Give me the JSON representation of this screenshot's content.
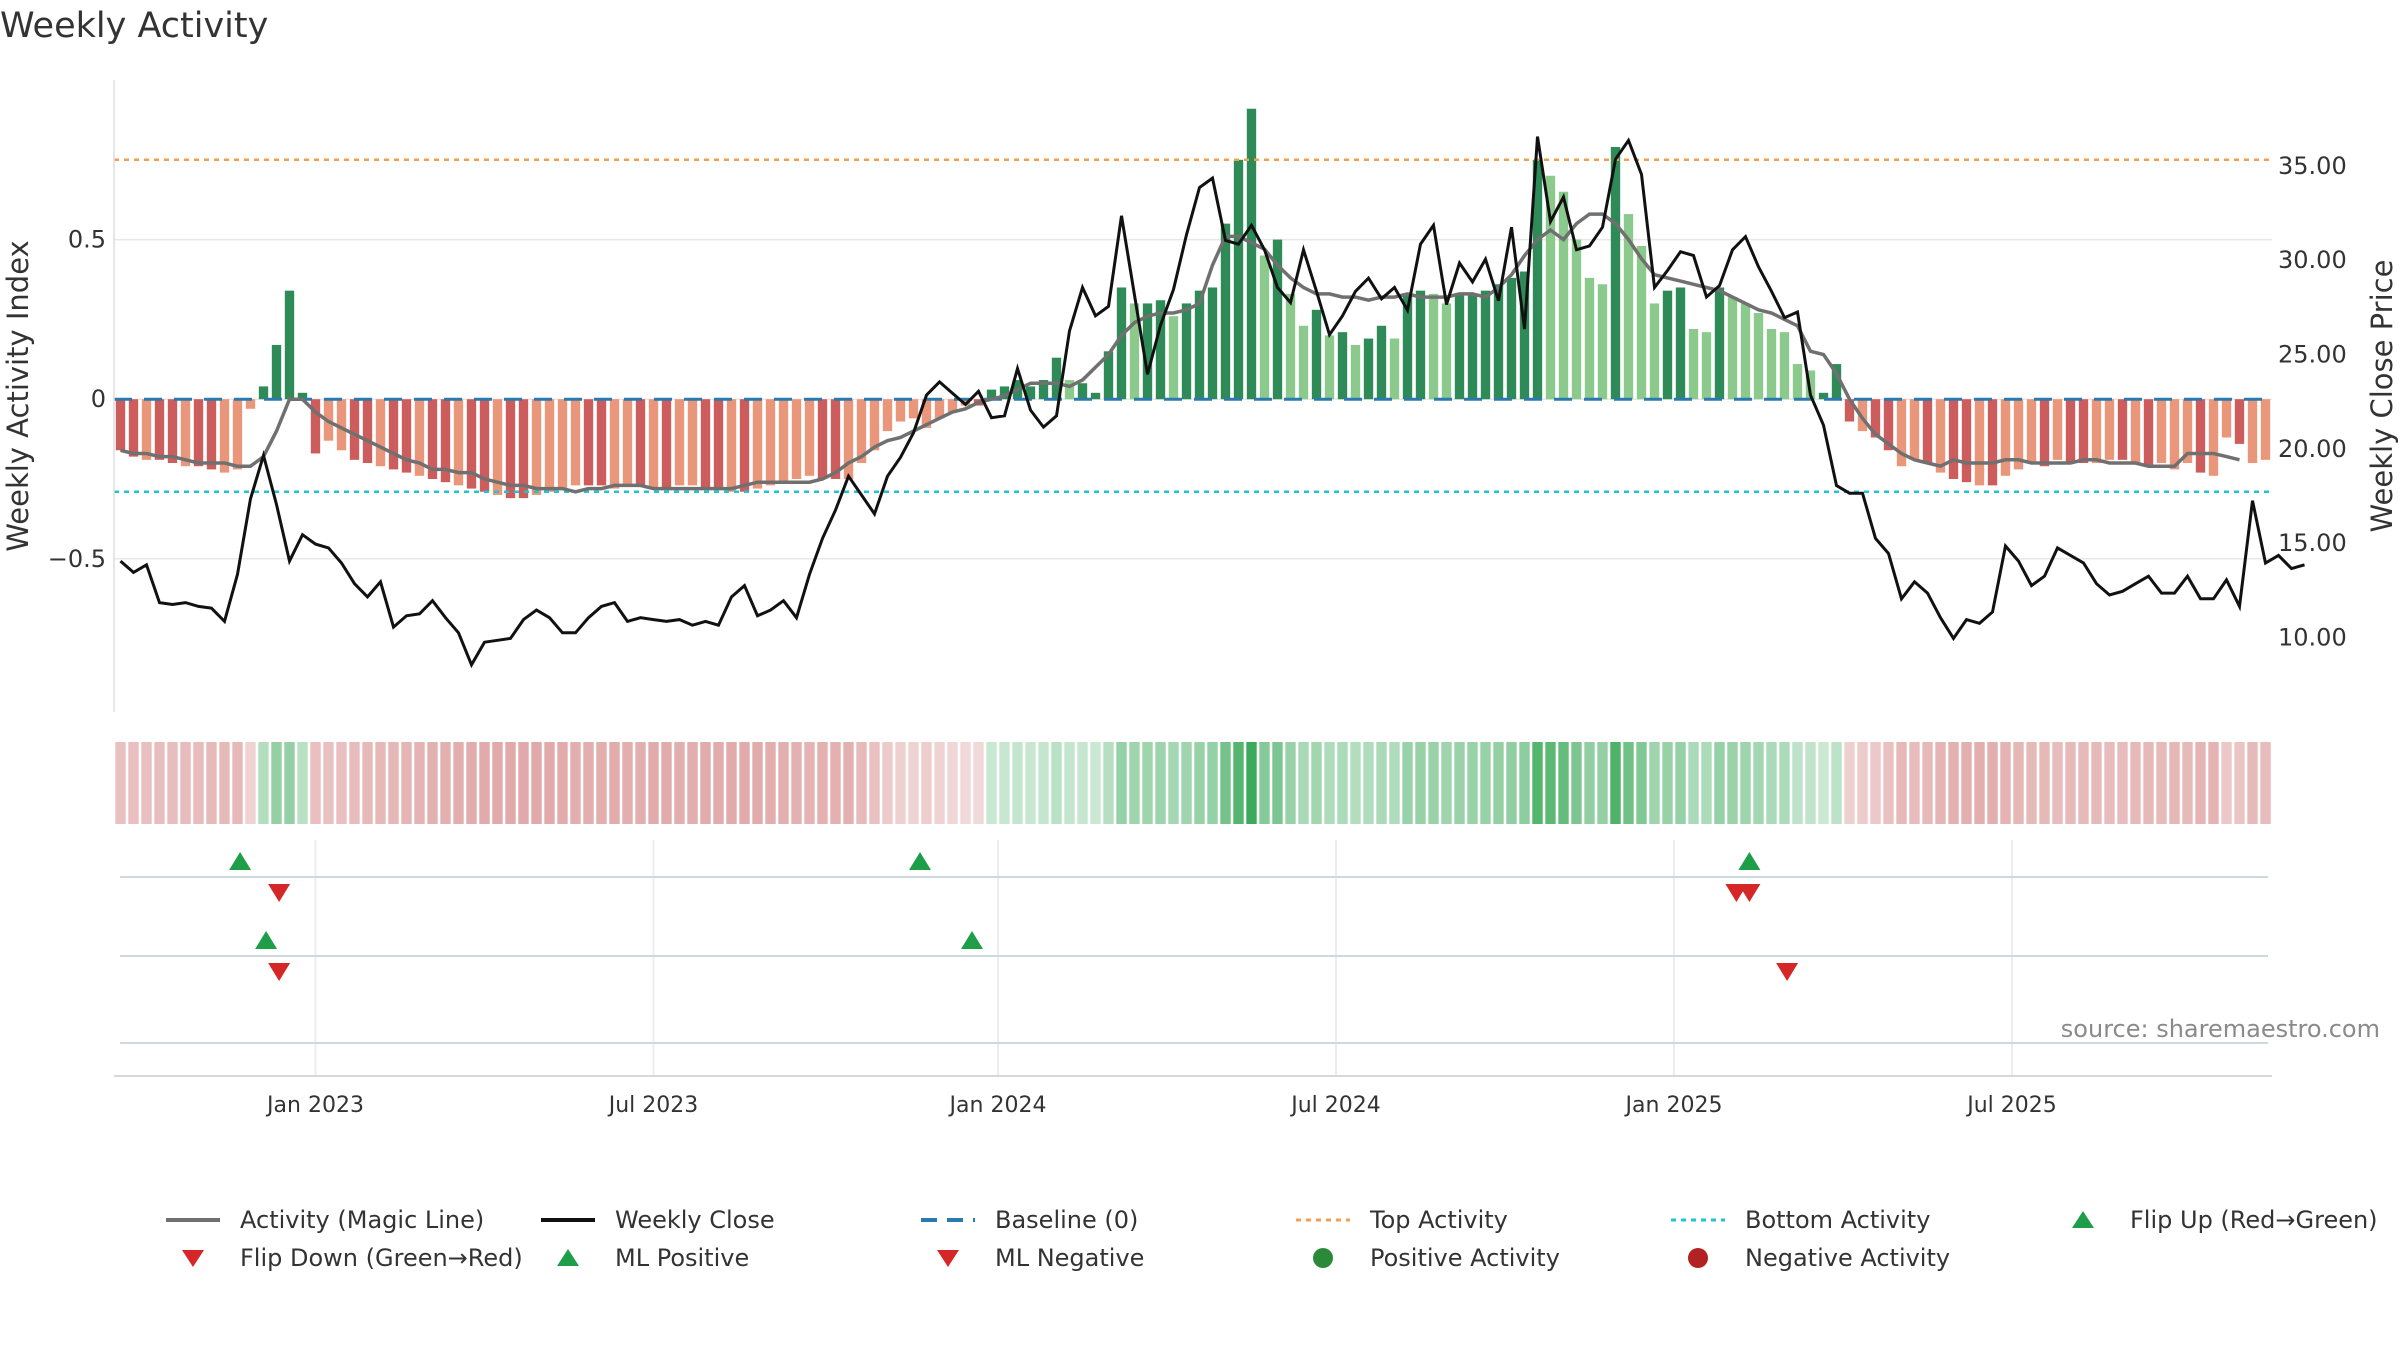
{
  "chart_data": {
    "type": "bar",
    "title": "Weekly Activity",
    "ylabel": "Weekly Activity Index",
    "y2label": "Weekly Close Price",
    "ylim": [
      -0.98,
      1.0
    ],
    "y2lim": [
      6.0,
      39.5
    ],
    "yticks": [
      {
        "v": 0.5,
        "label": "0.5"
      },
      {
        "v": 0,
        "label": "0"
      },
      {
        "v": -0.5,
        "label": "−0.5"
      }
    ],
    "y2ticks": [
      {
        "v": 35,
        "label": "35.00"
      },
      {
        "v": 30,
        "label": "30.00"
      },
      {
        "v": 25,
        "label": "25.00"
      },
      {
        "v": 20,
        "label": "20.00"
      },
      {
        "v": 15,
        "label": "15.00"
      },
      {
        "v": 10,
        "label": "10.00"
      }
    ],
    "top_activity": 0.75,
    "bottom_activity": -0.29,
    "x_ticks": [
      {
        "i": 15,
        "label": "Jan 2023"
      },
      {
        "i": 41,
        "label": "Jul 2023"
      },
      {
        "i": 67.5,
        "label": "Jan 2024"
      },
      {
        "i": 93.5,
        "label": "Jul 2024"
      },
      {
        "i": 119.5,
        "label": "Jan 2025"
      },
      {
        "i": 145.5,
        "label": "Jul 2025"
      }
    ],
    "activity": [
      -0.16,
      -0.18,
      -0.19,
      -0.19,
      -0.2,
      -0.21,
      -0.21,
      -0.22,
      -0.23,
      -0.22,
      -0.03,
      0.04,
      0.17,
      0.34,
      0.02,
      -0.17,
      -0.13,
      -0.16,
      -0.19,
      -0.2,
      -0.21,
      -0.22,
      -0.23,
      -0.24,
      -0.25,
      -0.26,
      -0.27,
      -0.28,
      -0.29,
      -0.3,
      -0.31,
      -0.31,
      -0.3,
      -0.29,
      -0.28,
      -0.27,
      -0.27,
      -0.27,
      -0.28,
      -0.27,
      -0.27,
      -0.28,
      -0.28,
      -0.27,
      -0.27,
      -0.28,
      -0.28,
      -0.29,
      -0.29,
      -0.28,
      -0.27,
      -0.26,
      -0.25,
      -0.24,
      -0.25,
      -0.25,
      -0.25,
      -0.2,
      -0.16,
      -0.1,
      -0.07,
      -0.06,
      -0.09,
      -0.06,
      -0.04,
      -0.02,
      -0.02,
      0.03,
      0.04,
      0.06,
      0.04,
      0.06,
      0.13,
      0.06,
      0.05,
      0.02,
      0.15,
      0.35,
      0.3,
      0.3,
      0.31,
      0.26,
      0.3,
      0.34,
      0.35,
      0.55,
      0.75,
      0.91,
      0.45,
      0.5,
      0.33,
      0.23,
      0.28,
      0.2,
      0.21,
      0.17,
      0.19,
      0.23,
      0.19,
      0.33,
      0.34,
      0.33,
      0.3,
      0.33,
      0.33,
      0.34,
      0.36,
      0.38,
      0.4,
      0.75,
      0.7,
      0.65,
      0.5,
      0.38,
      0.36,
      0.79,
      0.58,
      0.48,
      0.3,
      0.34,
      0.35,
      0.22,
      0.21,
      0.35,
      0.32,
      0.3,
      0.27,
      0.22,
      0.21,
      0.11,
      0.09,
      0.02,
      0.11,
      -0.07,
      -0.1,
      -0.12,
      -0.16,
      -0.21,
      -0.19,
      -0.2,
      -0.23,
      -0.25,
      -0.26,
      -0.27,
      -0.27,
      -0.24,
      -0.22,
      -0.2,
      -0.21,
      -0.19,
      -0.2,
      -0.2,
      -0.2,
      -0.19,
      -0.19,
      -0.2,
      -0.21,
      -0.2,
      -0.22,
      -0.2,
      -0.23,
      -0.24,
      -0.12,
      -0.14,
      -0.2,
      -0.19
    ],
    "magic_line": [
      -0.16,
      -0.17,
      -0.17,
      -0.18,
      -0.18,
      -0.19,
      -0.2,
      -0.2,
      -0.2,
      -0.21,
      -0.21,
      -0.18,
      -0.1,
      0.0,
      0.0,
      -0.04,
      -0.07,
      -0.09,
      -0.11,
      -0.13,
      -0.15,
      -0.17,
      -0.19,
      -0.2,
      -0.22,
      -0.22,
      -0.23,
      -0.23,
      -0.25,
      -0.26,
      -0.27,
      -0.27,
      -0.28,
      -0.28,
      -0.28,
      -0.29,
      -0.28,
      -0.28,
      -0.27,
      -0.27,
      -0.27,
      -0.28,
      -0.28,
      -0.28,
      -0.28,
      -0.28,
      -0.28,
      -0.28,
      -0.27,
      -0.26,
      -0.26,
      -0.26,
      -0.26,
      -0.26,
      -0.25,
      -0.23,
      -0.2,
      -0.18,
      -0.15,
      -0.13,
      -0.12,
      -0.1,
      -0.08,
      -0.06,
      -0.04,
      -0.03,
      -0.01,
      0.0,
      0.01,
      0.03,
      0.05,
      0.05,
      0.05,
      0.04,
      0.06,
      0.1,
      0.14,
      0.2,
      0.24,
      0.26,
      0.27,
      0.27,
      0.28,
      0.3,
      0.42,
      0.51,
      0.51,
      0.49,
      0.47,
      0.42,
      0.38,
      0.35,
      0.33,
      0.33,
      0.32,
      0.32,
      0.31,
      0.32,
      0.32,
      0.33,
      0.32,
      0.32,
      0.32,
      0.33,
      0.33,
      0.32,
      0.35,
      0.39,
      0.45,
      0.5,
      0.53,
      0.5,
      0.55,
      0.58,
      0.58,
      0.55,
      0.5,
      0.44,
      0.39,
      0.38,
      0.37,
      0.36,
      0.35,
      0.34,
      0.32,
      0.3,
      0.28,
      0.27,
      0.25,
      0.23,
      0.15,
      0.14,
      0.08,
      0.0,
      -0.06,
      -0.11,
      -0.14,
      -0.17,
      -0.19,
      -0.2,
      -0.21,
      -0.19,
      -0.2,
      -0.2,
      -0.2,
      -0.19,
      -0.19,
      -0.2,
      -0.2,
      -0.2,
      -0.2,
      -0.19,
      -0.19,
      -0.2,
      -0.2,
      -0.2,
      -0.21,
      -0.21,
      -0.21,
      -0.17,
      -0.17,
      -0.17,
      -0.18,
      -0.19
    ],
    "weekly_close": [
      14.0,
      13.4,
      13.8,
      11.8,
      11.7,
      11.8,
      11.6,
      11.5,
      10.8,
      13.3,
      17.3,
      19.6,
      17.0,
      14.0,
      15.4,
      14.9,
      14.7,
      13.9,
      12.8,
      12.1,
      12.9,
      10.5,
      11.1,
      11.2,
      11.9,
      11.0,
      10.2,
      8.5,
      9.7,
      9.8,
      9.9,
      10.9,
      11.4,
      11.0,
      10.2,
      10.2,
      11.0,
      11.6,
      11.8,
      10.8,
      11.0,
      10.9,
      10.8,
      10.9,
      10.6,
      10.8,
      10.6,
      12.1,
      12.7,
      11.1,
      11.4,
      11.9,
      11.0,
      13.3,
      15.2,
      16.7,
      18.5,
      17.5,
      16.5,
      18.5,
      19.5,
      20.8,
      22.8,
      23.5,
      22.9,
      22.3,
      23.0,
      21.6,
      21.7,
      24.2,
      22.0,
      21.1,
      21.7,
      26.2,
      28.5,
      27.0,
      27.5,
      32.3,
      28.1,
      23.9,
      26.5,
      28.4,
      31.3,
      33.8,
      34.3,
      31.0,
      30.8,
      31.8,
      30.5,
      28.5,
      27.7,
      30.5,
      28.3,
      26.0,
      27.0,
      28.3,
      29.0,
      27.9,
      28.5,
      27.3,
      30.8,
      31.8,
      27.6,
      29.8,
      28.8,
      30.0,
      27.8,
      31.7,
      26.3,
      36.5,
      32.0,
      33.3,
      30.5,
      30.7,
      31.7,
      35.3,
      36.3,
      34.5,
      28.5,
      29.4,
      30.4,
      30.2,
      28.0,
      28.6,
      30.5,
      31.2,
      29.6,
      28.3,
      26.9,
      27.2,
      22.8,
      21.2,
      18.0,
      17.6,
      17.6,
      15.2,
      14.4,
      12.0,
      12.9,
      12.3,
      11.0,
      9.9,
      10.9,
      10.7,
      11.3,
      14.8,
      14.0,
      12.7,
      13.2,
      14.7,
      14.3,
      13.9,
      12.8,
      12.2,
      12.4,
      12.8,
      13.2,
      12.3,
      12.3,
      13.2,
      12.0,
      12.0,
      13.0,
      11.6,
      17.2,
      13.9,
      14.3,
      13.6,
      13.8
    ],
    "strip_levels": [
      0.16,
      0.17,
      0.17,
      0.18,
      0.18,
      0.19,
      0.19,
      0.2,
      0.2,
      0.21,
      0.06,
      0.17,
      0.36,
      0.36,
      0.14,
      0.17,
      0.16,
      0.17,
      0.19,
      0.2,
      0.21,
      0.22,
      0.23,
      0.24,
      0.25,
      0.26,
      0.27,
      0.28,
      0.29,
      0.3,
      0.31,
      0.31,
      0.3,
      0.29,
      0.28,
      0.27,
      0.27,
      0.27,
      0.28,
      0.27,
      0.27,
      0.28,
      0.28,
      0.27,
      0.27,
      0.28,
      0.28,
      0.29,
      0.29,
      0.28,
      0.27,
      0.26,
      0.25,
      0.24,
      0.25,
      0.25,
      0.25,
      0.2,
      0.16,
      0.1,
      0.07,
      0.06,
      0.09,
      0.06,
      0.04,
      0.02,
      0.02,
      0.03,
      0.04,
      0.06,
      0.04,
      0.06,
      0.13,
      0.06,
      0.05,
      0.02,
      0.15,
      0.35,
      0.3,
      0.3,
      0.31,
      0.26,
      0.3,
      0.34,
      0.35,
      0.55,
      0.75,
      0.91,
      0.45,
      0.5,
      0.33,
      0.23,
      0.28,
      0.2,
      0.21,
      0.17,
      0.19,
      0.23,
      0.19,
      0.33,
      0.34,
      0.33,
      0.3,
      0.33,
      0.33,
      0.34,
      0.36,
      0.38,
      0.4,
      0.75,
      0.7,
      0.65,
      0.5,
      0.38,
      0.36,
      0.79,
      0.58,
      0.48,
      0.3,
      0.34,
      0.35,
      0.22,
      0.21,
      0.35,
      0.32,
      0.3,
      0.27,
      0.22,
      0.21,
      0.11,
      0.09,
      0.02,
      0.11,
      0.07,
      0.1,
      0.12,
      0.16,
      0.21,
      0.19,
      0.2,
      0.23,
      0.25,
      0.26,
      0.27,
      0.27,
      0.24,
      0.22,
      0.2,
      0.21,
      0.19,
      0.2,
      0.2,
      0.2,
      0.19,
      0.19,
      0.2,
      0.21,
      0.2,
      0.22,
      0.2,
      0.23,
      0.24,
      0.12,
      0.14,
      0.2,
      0.19
    ],
    "flips": {
      "row1_up": [
        9.2
      ],
      "row1_down": [
        12.2
      ],
      "row2_up": [
        61.5,
        125.3
      ],
      "row2_down": [
        124.3,
        125.3
      ],
      "row3_up": [
        11.2,
        65.5
      ],
      "row3_down": [
        12.2,
        128.2
      ]
    },
    "colors": {
      "strong_green": "#2e8b57",
      "light_green": "#8cc98c",
      "strong_red": "#cd5c5c",
      "light_red": "#e9967a",
      "magic_line": "#707070",
      "close_line": "#111111",
      "top_line": "#f0a050",
      "bottom_line": "#20c5d0",
      "baseline": "#2a7ab0",
      "marker_up": "#1f9e4a",
      "marker_down": "#d62728"
    }
  },
  "legend": [
    {
      "label": "Activity (Magic Line)",
      "symbol": "line-grey"
    },
    {
      "label": "Weekly Close",
      "symbol": "line-black"
    },
    {
      "label": "Baseline (0)",
      "symbol": "dash-blue"
    },
    {
      "label": "Top Activity",
      "symbol": "dot-orange"
    },
    {
      "label": "Bottom Activity",
      "symbol": "dot-cyan"
    },
    {
      "label": "Flip Up (Red→Green)",
      "symbol": "tri-up-green"
    },
    {
      "label": "Flip Down (Green→Red)",
      "symbol": "tri-down-red"
    },
    {
      "label": "ML Positive",
      "symbol": "tri-up-green"
    },
    {
      "label": "ML Negative",
      "symbol": "tri-down-red"
    },
    {
      "label": "Positive Activity",
      "symbol": "circle-green"
    },
    {
      "label": "Negative Activity",
      "symbol": "circle-red"
    }
  ],
  "source": "source: sharemaestro.com"
}
